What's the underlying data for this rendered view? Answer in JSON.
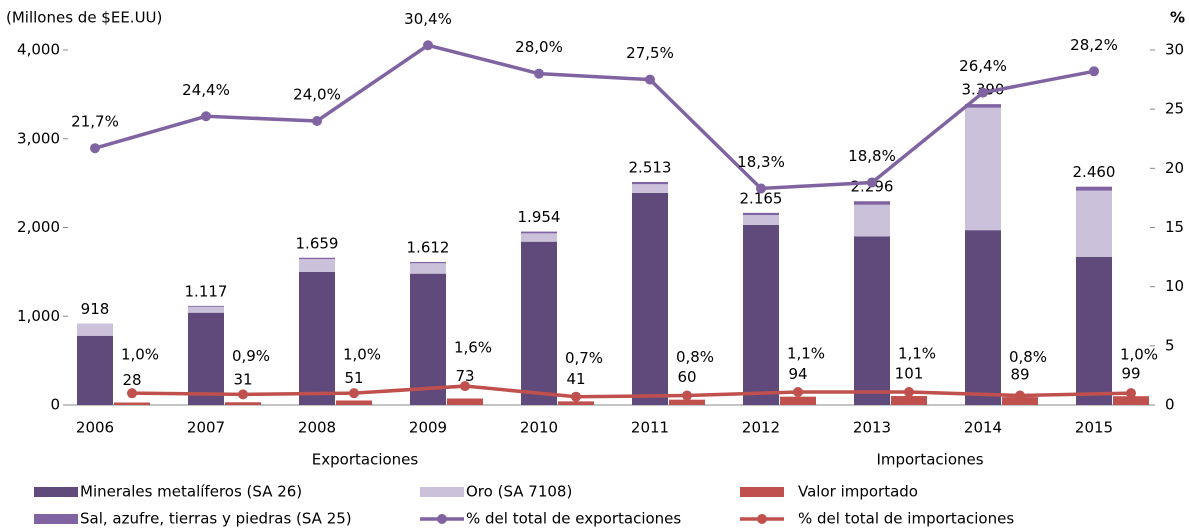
{
  "chart_data": {
    "type": "bar",
    "y_label": "(Millones de $EE.UU)",
    "y2_label": "%",
    "categories": [
      "2006",
      "2007",
      "2008",
      "2009",
      "2010",
      "2011",
      "2012",
      "2013",
      "2014",
      "2015"
    ],
    "groups": [
      "Exportaciones",
      "Importaciones"
    ],
    "ylim": [
      0,
      4000
    ],
    "yticks": [
      0,
      {
        "value": 1000,
        "label": "1,000"
      },
      {
        "value": 2000,
        "label": "2,000"
      },
      {
        "value": 3000,
        "label": "3,000"
      },
      {
        "value": 4000,
        "label": "4,000"
      }
    ],
    "y2lim": [
      0,
      30
    ],
    "y2ticks": [
      0,
      5,
      10,
      15,
      20,
      25,
      30
    ],
    "totals": [
      918,
      1117,
      1659,
      1612,
      1954,
      2513,
      2165,
      2296,
      3390,
      2460
    ],
    "total_labels": [
      "918",
      "1.117",
      "1.659",
      "1.612",
      "1.954",
      "2.513",
      "2.165",
      "2.296",
      "3.390",
      "2.460"
    ],
    "series": [
      {
        "name": "Minerales metalíferos (SA 26)",
        "type": "bar",
        "stack": "exp",
        "color": "#604a7b",
        "values": [
          780,
          1040,
          1500,
          1480,
          1840,
          2390,
          2030,
          1900,
          1970,
          1670
        ]
      },
      {
        "name": "Oro (SA 7108)",
        "type": "bar",
        "stack": "exp",
        "color": "#ccc1da",
        "values": [
          138,
          67,
          144,
          117,
          94,
          98,
          110,
          356,
          1380,
          745
        ]
      },
      {
        "name": "Valor importado",
        "type": "bar",
        "stack": "imp",
        "color": "#c0504d",
        "values": [
          28,
          31,
          51,
          73,
          41,
          60,
          94,
          101,
          89,
          99
        ]
      },
      {
        "name": "Sal, azufre, tierras y piedras (SA 25)",
        "type": "bar",
        "stack": "exp",
        "color": "#8064a2",
        "values": [
          0,
          10,
          15,
          15,
          20,
          25,
          25,
          40,
          40,
          45
        ]
      },
      {
        "name": "% del total de exportaciones",
        "type": "line",
        "axis": "y2",
        "stack": "exp",
        "color": "#8064a2",
        "values": [
          21.7,
          24.4,
          24.0,
          30.4,
          28.0,
          27.5,
          18.3,
          18.8,
          26.4,
          28.2
        ],
        "value_labels": [
          "21,7%",
          "24,4%",
          "24,0%",
          "30,4%",
          "28,0%",
          "27,5%",
          "18,3%",
          "18,8%",
          "26,4%",
          "28,2%"
        ]
      },
      {
        "name": "% del total de importaciones",
        "type": "line",
        "axis": "y2",
        "stack": "imp",
        "color": "#c0504d",
        "values": [
          1.0,
          0.9,
          1.0,
          1.6,
          0.7,
          0.8,
          1.1,
          1.1,
          0.8,
          1.0
        ],
        "value_labels": [
          "1,0%",
          "0,9%",
          "1,0%",
          "1,6%",
          "0,7%",
          "0,8%",
          "1,1%",
          "1,1%",
          "0,8%",
          "1,0%"
        ]
      }
    ],
    "import_value_labels": true
  }
}
